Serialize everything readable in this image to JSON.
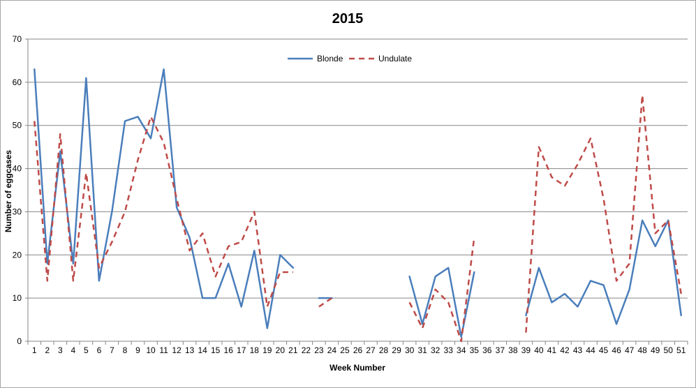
{
  "chart_data": {
    "type": "line",
    "title": "2015",
    "xlabel": "Week Number",
    "ylabel": "Number of eggcases",
    "categories": [
      "1",
      "2",
      "3",
      "4",
      "5",
      "6",
      "7",
      "8",
      "9",
      "10",
      "11",
      "12",
      "13",
      "14",
      "15",
      "16",
      "17",
      "18",
      "19",
      "20",
      "21",
      "22",
      "23",
      "24",
      "25",
      "26",
      "27",
      "28",
      "29",
      "30",
      "31",
      "32",
      "33",
      "34",
      "35",
      "36",
      "37",
      "38",
      "39",
      "40",
      "41",
      "42",
      "43",
      "44",
      "45",
      "46",
      "47",
      "48",
      "49",
      "50",
      "51"
    ],
    "ylim": [
      0,
      70
    ],
    "yticks": [
      0,
      10,
      20,
      30,
      40,
      50,
      60,
      70
    ],
    "grid": true,
    "legend_position": "top-center",
    "series": [
      {
        "name": "Blonde",
        "color": "#4a7ebb",
        "style": "solid",
        "values": [
          63,
          18,
          44,
          18,
          61,
          14,
          30,
          51,
          52,
          47,
          63,
          31,
          24,
          10,
          10,
          18,
          8,
          21,
          3,
          20,
          17,
          null,
          10,
          10,
          null,
          null,
          null,
          null,
          null,
          15,
          4,
          15,
          17,
          1,
          16,
          null,
          null,
          null,
          6,
          17,
          9,
          11,
          8,
          14,
          13,
          4,
          12,
          28,
          22,
          28,
          6
        ]
      },
      {
        "name": "Undulate",
        "color": "#be4b48",
        "style": "dashed",
        "values": [
          51,
          14,
          48,
          14,
          39,
          17,
          23,
          30,
          42,
          52,
          46,
          33,
          21,
          25,
          15,
          22,
          23,
          30,
          8,
          16,
          16,
          null,
          8,
          10,
          null,
          null,
          null,
          null,
          null,
          9,
          3,
          12,
          9,
          0,
          24,
          null,
          null,
          null,
          2,
          45,
          38,
          36,
          41,
          47,
          33,
          14,
          18,
          57,
          25,
          28,
          11
        ]
      }
    ]
  }
}
